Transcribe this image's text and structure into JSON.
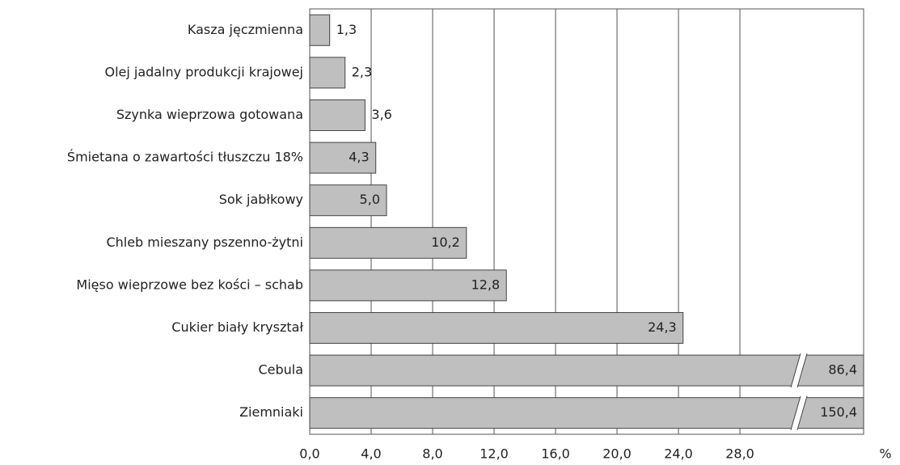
{
  "chart_data": {
    "type": "hbar",
    "categories": [
      "Kasza jęczmienna",
      "Olej jadalny produkcji krajowej",
      "Szynka wieprzowa gotowana",
      "Śmietana o zawartości tłuszczu 18%",
      "Sok jabłkowy",
      "Chleb mieszany pszenno-żytni",
      "Mięso wieprzowe bez kości – schab",
      "Cukier biały kryształ",
      "Cebula",
      "Ziemniaki"
    ],
    "values": [
      1.3,
      2.3,
      3.6,
      4.3,
      5.0,
      10.2,
      12.8,
      24.3,
      86.4,
      150.4
    ],
    "value_labels": [
      "1,3",
      "2,3",
      "3,6",
      "4,3",
      "5,0",
      "10,2",
      "12,8",
      "24,3",
      "86,4",
      "150,4"
    ],
    "color": "#bfbfbf",
    "xlim": [
      0,
      36.05
    ],
    "xticks": [
      {
        "value": 0,
        "label": "0,0"
      },
      {
        "value": 4,
        "label": "4,0"
      },
      {
        "value": 8,
        "label": "8,0"
      },
      {
        "value": 12,
        "label": "12,0"
      },
      {
        "value": 16,
        "label": "16,0"
      },
      {
        "value": 20,
        "label": "20,0"
      },
      {
        "value": 24,
        "label": "24,0"
      },
      {
        "value": 28,
        "label": "28,0"
      }
    ],
    "x_unit": "%",
    "grid": true
  }
}
